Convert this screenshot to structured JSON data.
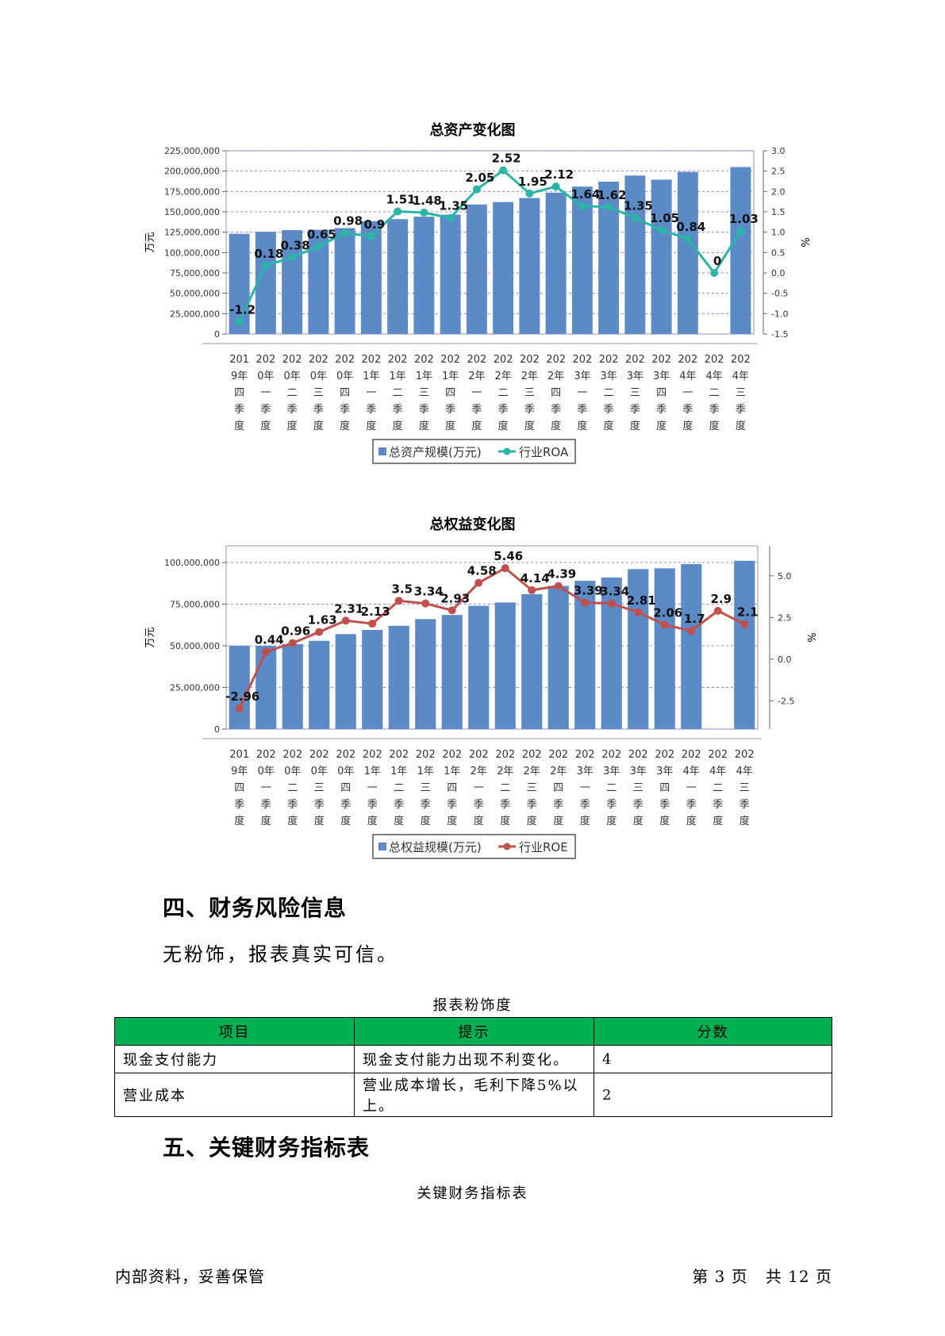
{
  "charts": {
    "assets": {
      "chart_data": {
        "type": "bar+line",
        "title": "总资产变化图",
        "categories": [
          [
            "201",
            "9年",
            "四",
            "季",
            "度"
          ],
          [
            "202",
            "0年",
            "一",
            "季",
            "度"
          ],
          [
            "202",
            "0年",
            "二",
            "季",
            "度"
          ],
          [
            "202",
            "0年",
            "三",
            "季",
            "度"
          ],
          [
            "202",
            "0年",
            "四",
            "季",
            "度"
          ],
          [
            "202",
            "1年",
            "一",
            "季",
            "度"
          ],
          [
            "202",
            "1年",
            "二",
            "季",
            "度"
          ],
          [
            "202",
            "1年",
            "三",
            "季",
            "度"
          ],
          [
            "202",
            "1年",
            "四",
            "季",
            "度"
          ],
          [
            "202",
            "2年",
            "一",
            "季",
            "度"
          ],
          [
            "202",
            "2年",
            "二",
            "季",
            "度"
          ],
          [
            "202",
            "2年",
            "三",
            "季",
            "度"
          ],
          [
            "202",
            "2年",
            "四",
            "季",
            "度"
          ],
          [
            "202",
            "3年",
            "一",
            "季",
            "度"
          ],
          [
            "202",
            "3年",
            "二",
            "季",
            "度"
          ],
          [
            "202",
            "3年",
            "三",
            "季",
            "度"
          ],
          [
            "202",
            "3年",
            "四",
            "季",
            "度"
          ],
          [
            "202",
            "4年",
            "一",
            "季",
            "度"
          ],
          [
            "202",
            "4年",
            "二",
            "季",
            "度"
          ],
          [
            "202",
            "4年",
            "三",
            "季",
            "度"
          ]
        ],
        "series": [
          {
            "name": "总资产规模(万元)",
            "type": "bar",
            "axis": "left",
            "values": [
              123000000,
              125500000,
              127500000,
              128000000,
              130000000,
              138500000,
              141000000,
              144000000,
              146500000,
              159000000,
              162000000,
              167000000,
              173500000,
              181000000,
              187000000,
              194500000,
              189500000,
              199000000,
              null,
              205000000
            ]
          },
          {
            "name": "行业ROA",
            "type": "line",
            "axis": "right",
            "values": [
              -1.2,
              0.18,
              0.38,
              0.65,
              0.98,
              0.9,
              1.51,
              1.48,
              1.35,
              2.05,
              2.52,
              1.95,
              2.12,
              1.64,
              1.62,
              1.35,
              1.05,
              0.84,
              0,
              1.03
            ],
            "labels": [
              "-1.2",
              "0.18",
              "0.38",
              "0.65",
              "0.98",
              "0.9",
              "1.51",
              "1.48",
              "1.35",
              "2.05",
              "2.52",
              "1.95",
              "2.12",
              "1.64",
              "1.62",
              "1.35",
              "1.05",
              "0.84",
              "0",
              "1.03"
            ]
          }
        ],
        "left_axis": {
          "label": "万元",
          "min": 0,
          "max": 225000000,
          "ticks": [
            "0",
            "25,000,000",
            "50,000,000",
            "75,000,000",
            "100,000,000",
            "125,000,000",
            "150,000,000",
            "175,000,000",
            "200,000,000",
            "225,000,000"
          ]
        },
        "right_axis": {
          "label": "%",
          "min": -1.5,
          "max": 3.0,
          "ticks": [
            "-1.5",
            "-1.0",
            "-0.5",
            "0.0",
            "0.5",
            "1.0",
            "1.5",
            "2.0",
            "2.5",
            "3.0"
          ]
        },
        "legend_position": "bottom",
        "colors": {
          "bar": "#5b8ac6",
          "line": "#2bb5a6"
        }
      }
    },
    "equity": {
      "chart_data": {
        "type": "bar+line",
        "title": "总权益变化图",
        "categories": [
          [
            "201",
            "9年",
            "四",
            "季",
            "度"
          ],
          [
            "202",
            "0年",
            "一",
            "季",
            "度"
          ],
          [
            "202",
            "0年",
            "二",
            "季",
            "度"
          ],
          [
            "202",
            "0年",
            "三",
            "季",
            "度"
          ],
          [
            "202",
            "0年",
            "四",
            "季",
            "度"
          ],
          [
            "202",
            "1年",
            "一",
            "季",
            "度"
          ],
          [
            "202",
            "1年",
            "二",
            "季",
            "度"
          ],
          [
            "202",
            "1年",
            "三",
            "季",
            "度"
          ],
          [
            "202",
            "1年",
            "四",
            "季",
            "度"
          ],
          [
            "202",
            "2年",
            "一",
            "季",
            "度"
          ],
          [
            "202",
            "2年",
            "二",
            "季",
            "度"
          ],
          [
            "202",
            "2年",
            "三",
            "季",
            "度"
          ],
          [
            "202",
            "2年",
            "四",
            "季",
            "度"
          ],
          [
            "202",
            "3年",
            "一",
            "季",
            "度"
          ],
          [
            "202",
            "3年",
            "二",
            "季",
            "度"
          ],
          [
            "202",
            "3年",
            "三",
            "季",
            "度"
          ],
          [
            "202",
            "3年",
            "四",
            "季",
            "度"
          ],
          [
            "202",
            "4年",
            "一",
            "季",
            "度"
          ],
          [
            "202",
            "4年",
            "二",
            "季",
            "度"
          ],
          [
            "202",
            "4年",
            "三",
            "季",
            "度"
          ]
        ],
        "series": [
          {
            "name": "总权益规模(万元)",
            "type": "bar",
            "axis": "left",
            "values": [
              50000000,
              50000000,
              51000000,
              53000000,
              57000000,
              59500000,
              62000000,
              66000000,
              68500000,
              74000000,
              76000000,
              81000000,
              86000000,
              89000000,
              91000000,
              96000000,
              96500000,
              99000000,
              null,
              101000000
            ]
          },
          {
            "name": "行业ROE",
            "type": "line",
            "axis": "right",
            "values": [
              -2.96,
              0.44,
              0.96,
              1.63,
              2.31,
              2.13,
              3.5,
              3.34,
              2.93,
              4.58,
              5.46,
              4.14,
              4.39,
              3.39,
              3.34,
              2.81,
              2.06,
              1.7,
              2.9,
              2.1
            ],
            "labels": [
              "-2.96",
              "0.44",
              "0.96",
              "1.63",
              "2.31",
              "2.13",
              "3.5",
              "3.34",
              "2.93",
              "4.58",
              "5.46",
              "4.14",
              "4.39",
              "3.39",
              "3.34",
              "2.81",
              "2.06",
              "1.7",
              "2.9",
              "2.1"
            ]
          }
        ],
        "left_axis": {
          "label": "万元",
          "min": 0,
          "max": 110000000,
          "ticks": [
            "0",
            "25,000,000",
            "50,000,000",
            "75,000,000",
            "100,000,000"
          ]
        },
        "right_axis": {
          "label": "%",
          "min": -4.2,
          "max": 6.8,
          "ticks": [
            "-2.5",
            "0.0",
            "2.5",
            "5.0"
          ]
        },
        "legend_position": "bottom",
        "colors": {
          "bar": "#5b8ac6",
          "line": "#c0504d"
        }
      }
    }
  },
  "section4": {
    "heading": "四、财务风险信息",
    "text": "无粉饰，报表真实可信。",
    "table_caption": "报表粉饰度",
    "columns": [
      "项目",
      "提示",
      "分数"
    ],
    "rows": [
      [
        "现金支付能力",
        "现金支付能力出现不利变化。",
        "4"
      ],
      [
        "营业成本",
        "营业成本增长，毛利下降5%以上。",
        "2"
      ]
    ]
  },
  "section5": {
    "heading": "五、关键财务指标表",
    "table_caption": "关键财务指标表"
  },
  "footer": {
    "left": "内部资料，妥善保管",
    "right": "第 3 页   共 12 页"
  }
}
